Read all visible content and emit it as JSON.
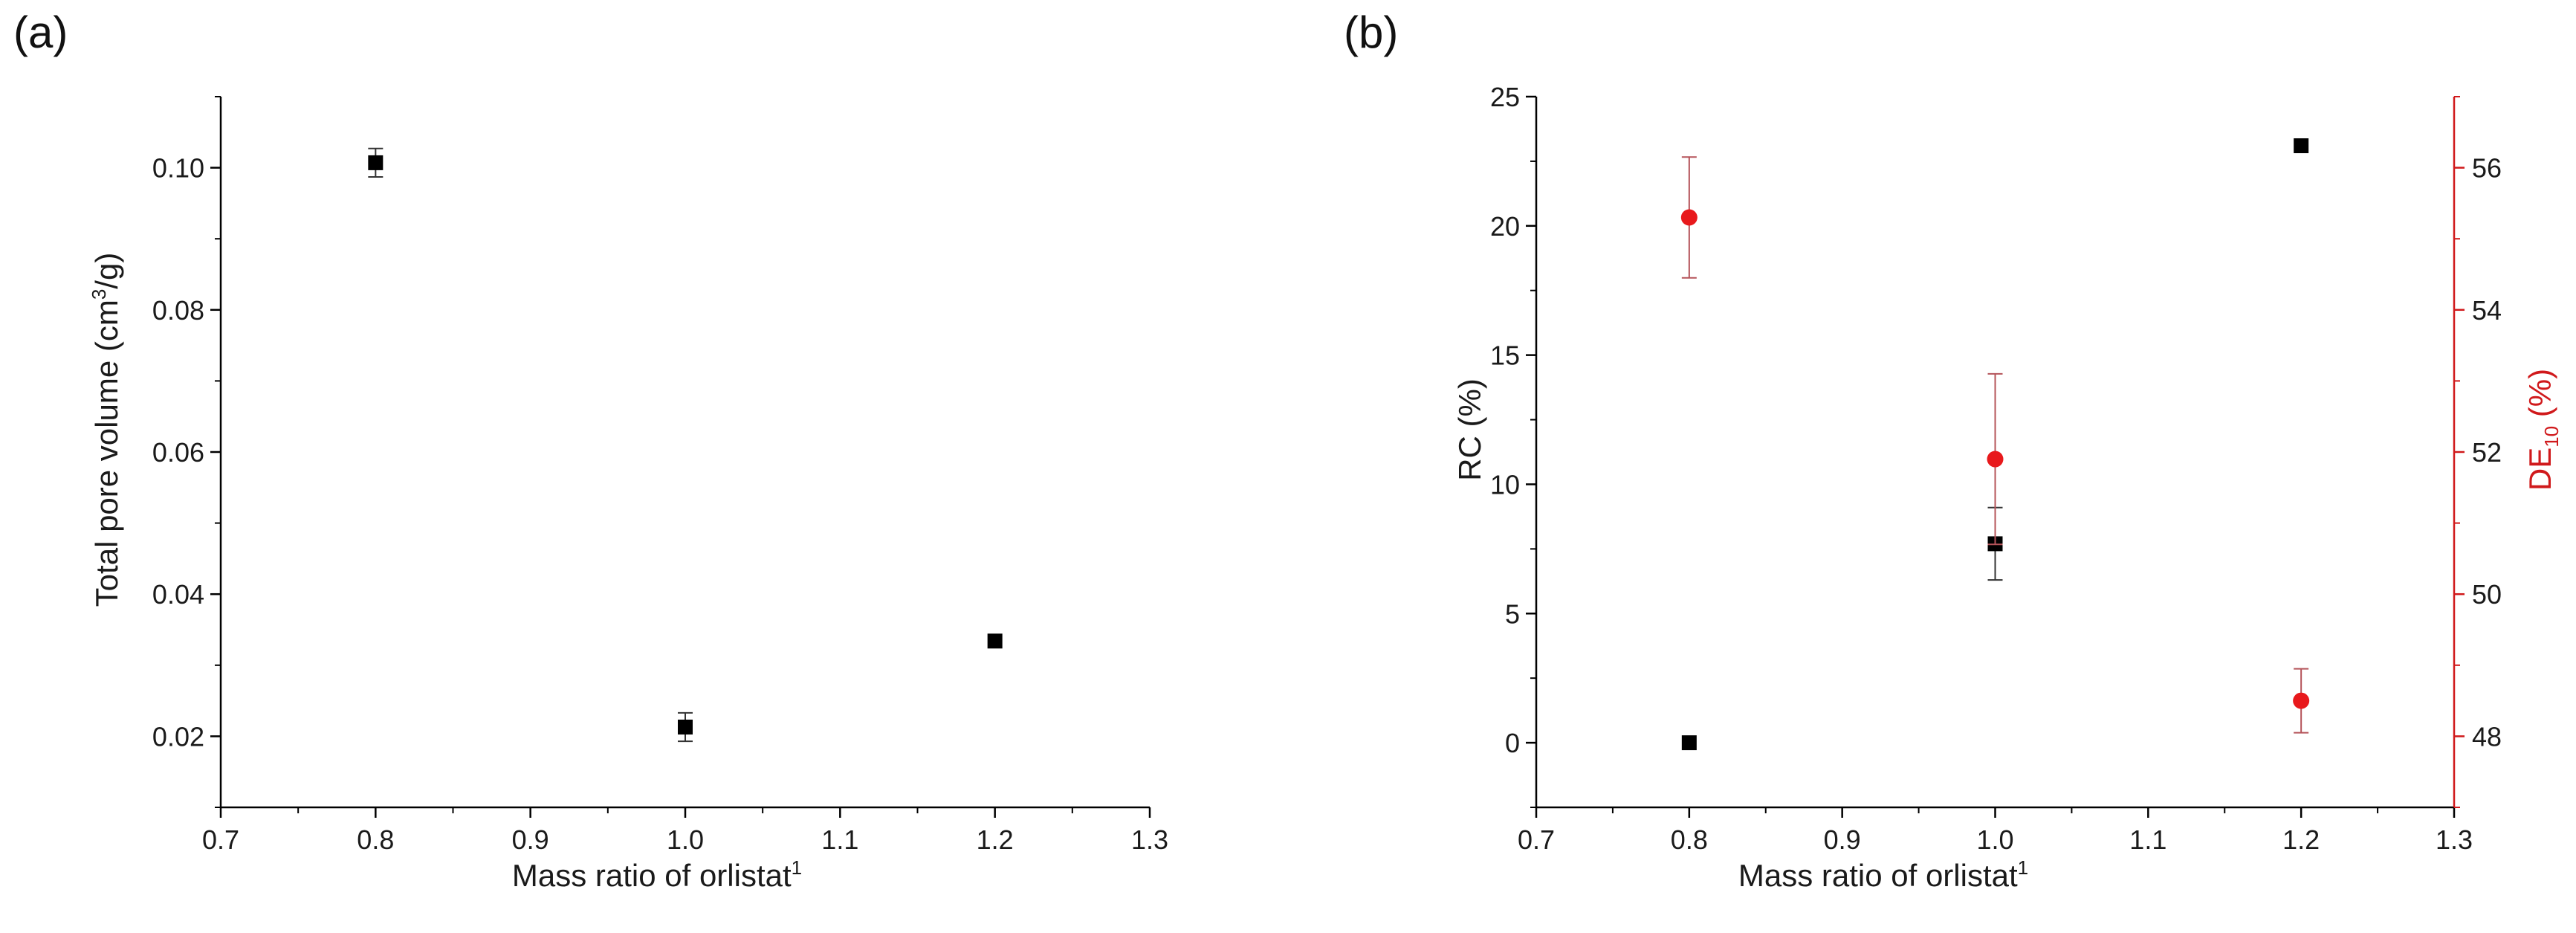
{
  "chart_data": [
    {
      "type": "scatter",
      "panel_label": "(a)",
      "title": "",
      "xlabel": "Mass ratio of orlistat",
      "xlabel_sup": "1",
      "ylabel_pre": "Total pore volume (cm",
      "ylabel_sup": "3",
      "ylabel_post": "/g)",
      "xlim": [
        0.7,
        1.3
      ],
      "ylim": [
        0.01,
        0.11
      ],
      "xticks": [
        "0.7",
        "0.8",
        "0.9",
        "1.0",
        "1.1",
        "1.2",
        "1.3"
      ],
      "yticks": [
        "0.02",
        "0.04",
        "0.06",
        "0.08",
        "0.10"
      ],
      "grid": false,
      "series": [
        {
          "marker": "square",
          "color": "#000000",
          "points": [
            {
              "x": 0.8,
              "y": 0.1007,
              "err": 0.002
            },
            {
              "x": 1.0,
              "y": 0.0213,
              "err": 0.002
            },
            {
              "x": 1.2,
              "y": 0.0334,
              "err": 0.0
            }
          ]
        }
      ]
    },
    {
      "type": "scatter",
      "panel_label": "(b)",
      "title": "",
      "xlabel": "Mass ratio of orlistat",
      "xlabel_sup": "1",
      "ylabel": "RC (%)",
      "y2label_main": "DE",
      "y2label_sub": "10",
      "y2label_post": " (%)",
      "xlim": [
        0.7,
        1.3
      ],
      "ylim": [
        -2.5,
        25
      ],
      "y2lim": [
        47,
        57
      ],
      "xticks": [
        "0.7",
        "0.8",
        "0.9",
        "1.0",
        "1.1",
        "1.2",
        "1.3"
      ],
      "yticks": [
        "0",
        "5",
        "10",
        "15",
        "20",
        "25"
      ],
      "y2ticks": [
        "48",
        "50",
        "52",
        "54",
        "56"
      ],
      "grid": false,
      "series": [
        {
          "axis": "left",
          "marker": "square",
          "color": "#000000",
          "points": [
            {
              "x": 0.8,
              "y": 0.0,
              "err": 0.0
            },
            {
              "x": 1.0,
              "y": 7.7,
              "err": 1.4
            },
            {
              "x": 1.2,
              "y": 23.1,
              "err": 0.0
            }
          ]
        },
        {
          "axis": "right",
          "marker": "circle",
          "color": "#e8191c",
          "points": [
            {
              "x": 0.8,
              "y": 55.3,
              "err": 0.85
            },
            {
              "x": 1.0,
              "y": 51.9,
              "err": 1.2
            },
            {
              "x": 1.2,
              "y": 48.5,
              "err": 0.45
            }
          ]
        }
      ]
    }
  ]
}
